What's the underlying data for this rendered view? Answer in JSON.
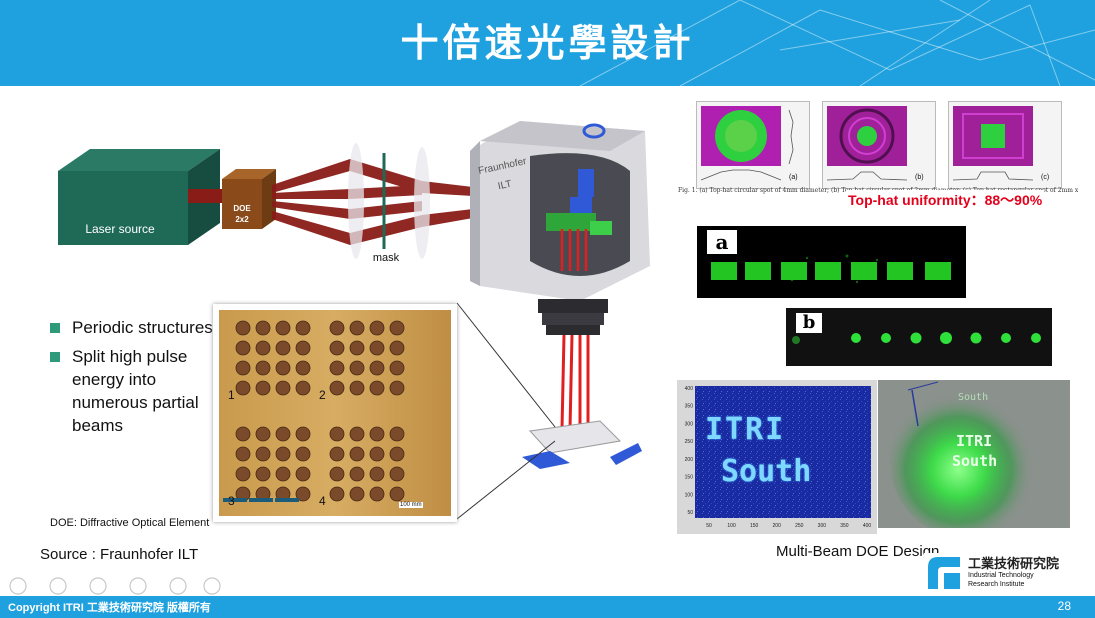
{
  "header": {
    "title": "十倍速光學設計"
  },
  "diagram": {
    "laser_source": "Laser source",
    "doe_line1": "DOE",
    "doe_line2": "2x2",
    "mask": "mask",
    "head_brand_line1": "Fraunhofer",
    "head_brand_line2": "ILT"
  },
  "bullets": [
    {
      "text": "Periodic structures"
    },
    {
      "text": "Split high pulse energy into numerous partial beams"
    }
  ],
  "micrograph": {
    "labels": [
      "1",
      "2",
      "3",
      "4"
    ],
    "scale": "100 mm"
  },
  "doe_note": "DOE: Diffractive Optical Element",
  "source_note": "Source : Fraunhofer ILT",
  "tophat": {
    "panels": [
      "(a)",
      "(b)",
      "(c)"
    ],
    "caption": "Fig. 1. (a) Top-hat circular spot of 4mm diameter; (b) Top-hat circular spot of 2mm diameter; (c) Top-hat rectangular spot of 2mm x 2mm",
    "uniformity": "Top-hat uniformity：88～90%"
  },
  "beam_a_label": "a",
  "beam_b_label": "b",
  "itri_plot": {
    "y_ticks": [
      "400",
      "350",
      "300",
      "250",
      "200",
      "150",
      "100",
      "50"
    ],
    "x_ticks": [
      "50",
      "100",
      "150",
      "200",
      "250",
      "300",
      "350",
      "400"
    ],
    "line1": "ITRI",
    "line2": "South"
  },
  "projection": {
    "line1": "ITRI",
    "line2": "South",
    "top": "South"
  },
  "multibeam_caption": "Multi-Beam DOE Design",
  "logo": {
    "zh": "工業技術研究院",
    "en1": "Industrial Technology",
    "en2": "Research Institute"
  },
  "footer": {
    "copyright": "Copyright ITRI 工業技術研究院 版權所有",
    "page": "28"
  },
  "colors": {
    "header": "#1ea1de",
    "bullet": "#2e9a7a",
    "highlight": "#e4001b"
  }
}
